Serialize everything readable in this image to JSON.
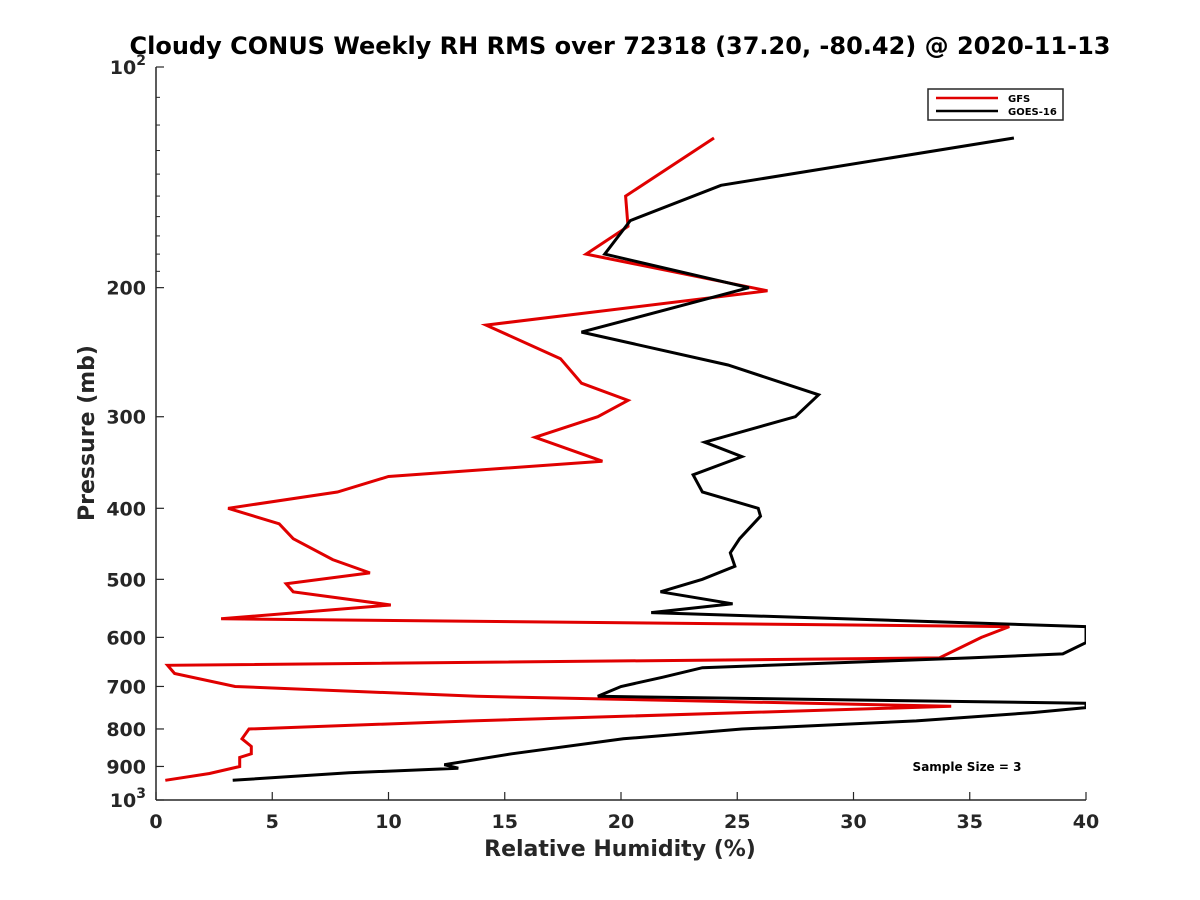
{
  "chart_data": {
    "type": "line",
    "title": "Cloudy CONUS Weekly RH RMS over 72318 (37.20, -80.42) @ 2020-11-13",
    "xlabel": "Relative Humidity (%)",
    "ylabel": "Pressure (mb)",
    "xlim": [
      0,
      40
    ],
    "ylim": [
      1000,
      100
    ],
    "yscale": "log-reversed",
    "x_ticks": [
      "0",
      "5",
      "10",
      "15",
      "20",
      "25",
      "30",
      "35",
      "40"
    ],
    "y_ticks": [
      {
        "value": 100,
        "base": "10",
        "exp": "2"
      },
      {
        "value": 200,
        "label": "200"
      },
      {
        "value": 300,
        "label": "300"
      },
      {
        "value": 400,
        "label": "400"
      },
      {
        "value": 500,
        "label": "500"
      },
      {
        "value": 600,
        "label": "600"
      },
      {
        "value": 700,
        "label": "700"
      },
      {
        "value": 800,
        "label": "800"
      },
      {
        "value": 900,
        "label": "900"
      },
      {
        "value": 1000,
        "base": "10",
        "exp": "3"
      }
    ],
    "legend": {
      "location": "top-right"
    },
    "annotation": "Sample Size = 3",
    "series": [
      {
        "name": "GFS",
        "color": "#e00000",
        "points": [
          [
            24.0,
            125
          ],
          [
            20.2,
            150
          ],
          [
            20.3,
            165
          ],
          [
            18.5,
            180
          ],
          [
            26.3,
            202
          ],
          [
            14.2,
            225
          ],
          [
            17.4,
            250
          ],
          [
            18.3,
            270
          ],
          [
            20.3,
            285
          ],
          [
            19.0,
            300
          ],
          [
            16.3,
            320
          ],
          [
            19.2,
            345
          ],
          [
            10.0,
            362
          ],
          [
            7.8,
            380
          ],
          [
            3.1,
            400
          ],
          [
            5.3,
            420
          ],
          [
            5.9,
            440
          ],
          [
            7.6,
            470
          ],
          [
            9.2,
            490
          ],
          [
            5.6,
            507
          ],
          [
            5.9,
            520
          ],
          [
            10.1,
            542
          ],
          [
            2.8,
            566
          ],
          [
            36.7,
            580
          ],
          [
            35.5,
            600
          ],
          [
            33.7,
            640
          ],
          [
            0.5,
            655
          ],
          [
            0.8,
            672
          ],
          [
            3.4,
            700
          ],
          [
            13.8,
            722
          ],
          [
            34.2,
            745
          ],
          [
            13.6,
            780
          ],
          [
            4.0,
            800
          ],
          [
            3.7,
            825
          ],
          [
            4.1,
            845
          ],
          [
            4.1,
            865
          ],
          [
            3.6,
            875
          ],
          [
            3.6,
            900
          ],
          [
            2.3,
            920
          ],
          [
            0.4,
            940
          ]
        ]
      },
      {
        "name": "GOES-16",
        "color": "#000000",
        "points": [
          [
            36.9,
            125
          ],
          [
            24.3,
            145
          ],
          [
            20.4,
            162
          ],
          [
            19.3,
            180
          ],
          [
            25.5,
            200
          ],
          [
            18.3,
            230
          ],
          [
            24.6,
            255
          ],
          [
            28.5,
            280
          ],
          [
            27.5,
            300
          ],
          [
            23.6,
            325
          ],
          [
            25.2,
            340
          ],
          [
            23.1,
            360
          ],
          [
            23.5,
            380
          ],
          [
            25.9,
            400
          ],
          [
            26.0,
            410
          ],
          [
            25.1,
            440
          ],
          [
            24.7,
            460
          ],
          [
            24.9,
            480
          ],
          [
            23.5,
            500
          ],
          [
            21.7,
            520
          ],
          [
            24.8,
            540
          ],
          [
            21.3,
            555
          ],
          [
            40.0,
            580
          ],
          [
            40.0,
            610
          ],
          [
            39.0,
            632
          ],
          [
            35.0,
            640
          ],
          [
            23.5,
            660
          ],
          [
            21.8,
            680
          ],
          [
            20.0,
            700
          ],
          [
            19.0,
            722
          ],
          [
            40.0,
            738
          ],
          [
            40.0,
            748
          ],
          [
            37.7,
            760
          ],
          [
            32.7,
            780
          ],
          [
            25.2,
            800
          ],
          [
            20.1,
            825
          ],
          [
            15.3,
            865
          ],
          [
            12.4,
            895
          ],
          [
            13.0,
            905
          ],
          [
            8.3,
            918
          ],
          [
            3.3,
            940
          ]
        ]
      }
    ]
  }
}
